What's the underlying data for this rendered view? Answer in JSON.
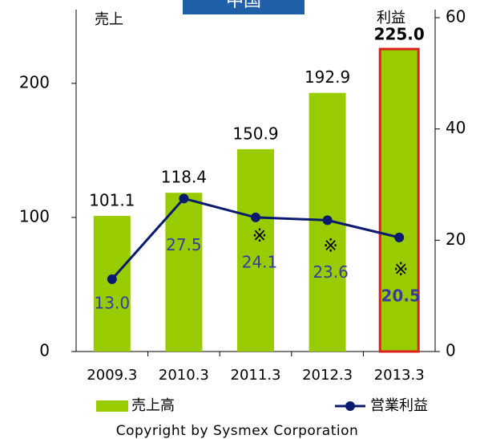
{
  "chart_data": {
    "type": "bar_line",
    "title": "中国",
    "y_label": "売上",
    "y2_label": "利益",
    "categories": [
      "2009.3",
      "2010.3",
      "2011.3",
      "2012.3",
      "2013.3"
    ],
    "series": [
      {
        "name": "売上高",
        "type": "bar",
        "color": "#99cc00",
        "values": [
          101.1,
          118.4,
          150.9,
          192.9,
          225.0
        ],
        "value_labels": [
          "101.1",
          "118.4",
          "150.9",
          "192.9",
          "225.0"
        ]
      },
      {
        "name": "営業利益",
        "type": "line",
        "axis": "y2",
        "color": "#0a1a6e",
        "label_color": "#3a3aa0",
        "values": [
          13.0,
          27.5,
          24.1,
          23.6,
          20.5
        ],
        "value_labels": [
          "13.0",
          "27.5",
          "24.1",
          "23.6",
          "20.5"
        ],
        "notes": [
          null,
          null,
          "※",
          "※",
          "※"
        ]
      }
    ],
    "highlight": "2013.3",
    "highlight_color": "#e02020",
    "ylim": [
      0,
      249
    ],
    "yticks": [
      0,
      100,
      200
    ],
    "y2lim": [
      0,
      60
    ],
    "y2ticks": [
      0,
      20,
      40,
      60
    ],
    "copyright": "Copyright by Sysmex Corporation"
  }
}
